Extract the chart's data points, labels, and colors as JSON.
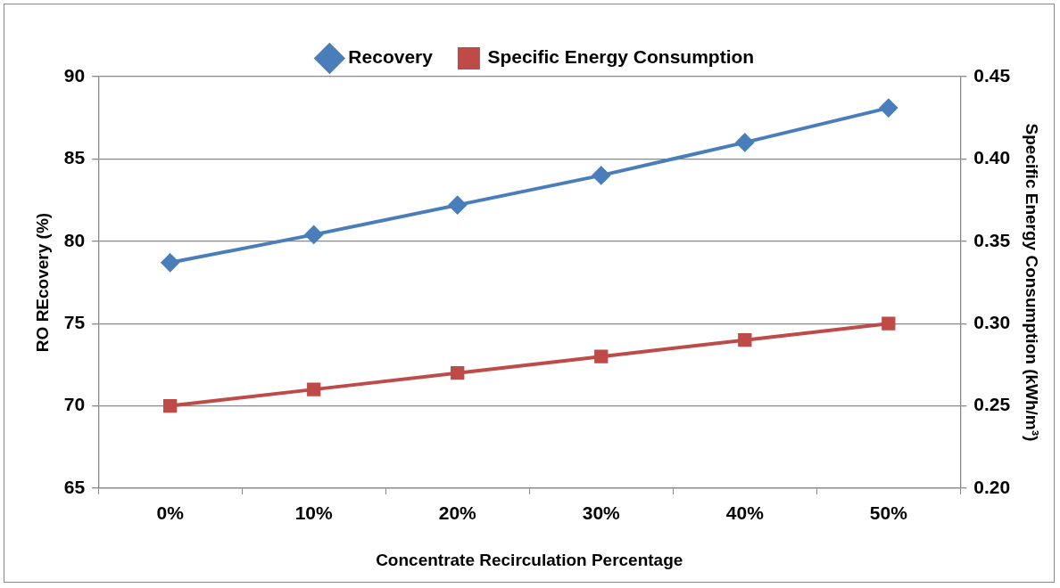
{
  "chart_data": {
    "type": "line",
    "xlabel": "Concentrate Recirculation Percentage",
    "ylabel": "RO REcovery (%)",
    "y2label": "Specific Energy Consumption (kWh/m³)",
    "categories": [
      "0%",
      "10%",
      "20%",
      "30%",
      "40%",
      "50%"
    ],
    "series": [
      {
        "name": "Recovery",
        "color": "#4a7ebb",
        "marker": "diamond",
        "values": [
          78.7,
          80.4,
          82.2,
          84.0,
          86.0,
          88.1
        ]
      },
      {
        "name": "Specific Energy Consumption",
        "color": "#be4b48",
        "marker": "square",
        "axis": "y2",
        "values": [
          0.25,
          0.26,
          0.27,
          0.28,
          0.29,
          0.3
        ]
      }
    ],
    "ylim": [
      65,
      90
    ],
    "yticks": [
      65,
      70,
      75,
      80,
      85,
      90
    ],
    "y2lim": [
      0.2,
      0.45
    ],
    "y2ticks": [
      {
        "value": 0.2,
        "label": "0.20"
      },
      {
        "value": 0.25,
        "label": "0.25"
      },
      {
        "value": 0.3,
        "label": "0.30"
      },
      {
        "value": 0.35,
        "label": "0.35"
      },
      {
        "value": 0.4,
        "label": "0.40"
      },
      {
        "value": 0.45,
        "label": "0.45"
      }
    ],
    "grid": "y",
    "legend": "top",
    "line_style": "solid"
  }
}
